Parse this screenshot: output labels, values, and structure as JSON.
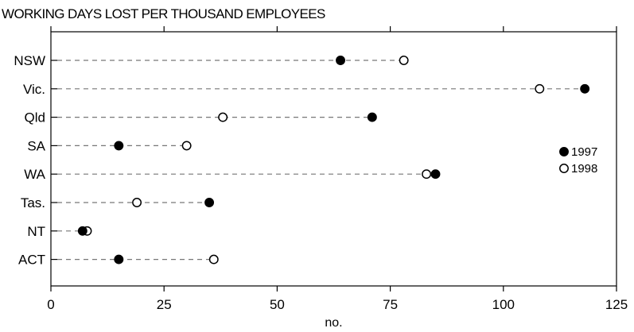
{
  "chart_data": {
    "type": "scatter",
    "title": "WORKING DAYS LOST PER THOUSAND EMPLOYEES",
    "xlabel": "no.",
    "ylabel": "",
    "xlim": [
      0,
      125
    ],
    "xticks": [
      0,
      25,
      50,
      75,
      100,
      125
    ],
    "categories": [
      "NSW",
      "Vic.",
      "Qld",
      "SA",
      "WA",
      "Tas.",
      "NT",
      "ACT"
    ],
    "series": [
      {
        "name": "1997",
        "marker": "filled-circle",
        "values": [
          64,
          118,
          71,
          15,
          85,
          35,
          7,
          15
        ]
      },
      {
        "name": "1998",
        "marker": "open-circle",
        "values": [
          78,
          108,
          38,
          30,
          83,
          19,
          8,
          36
        ]
      }
    ],
    "guide_lines": "dashed",
    "legend_position": "right"
  }
}
